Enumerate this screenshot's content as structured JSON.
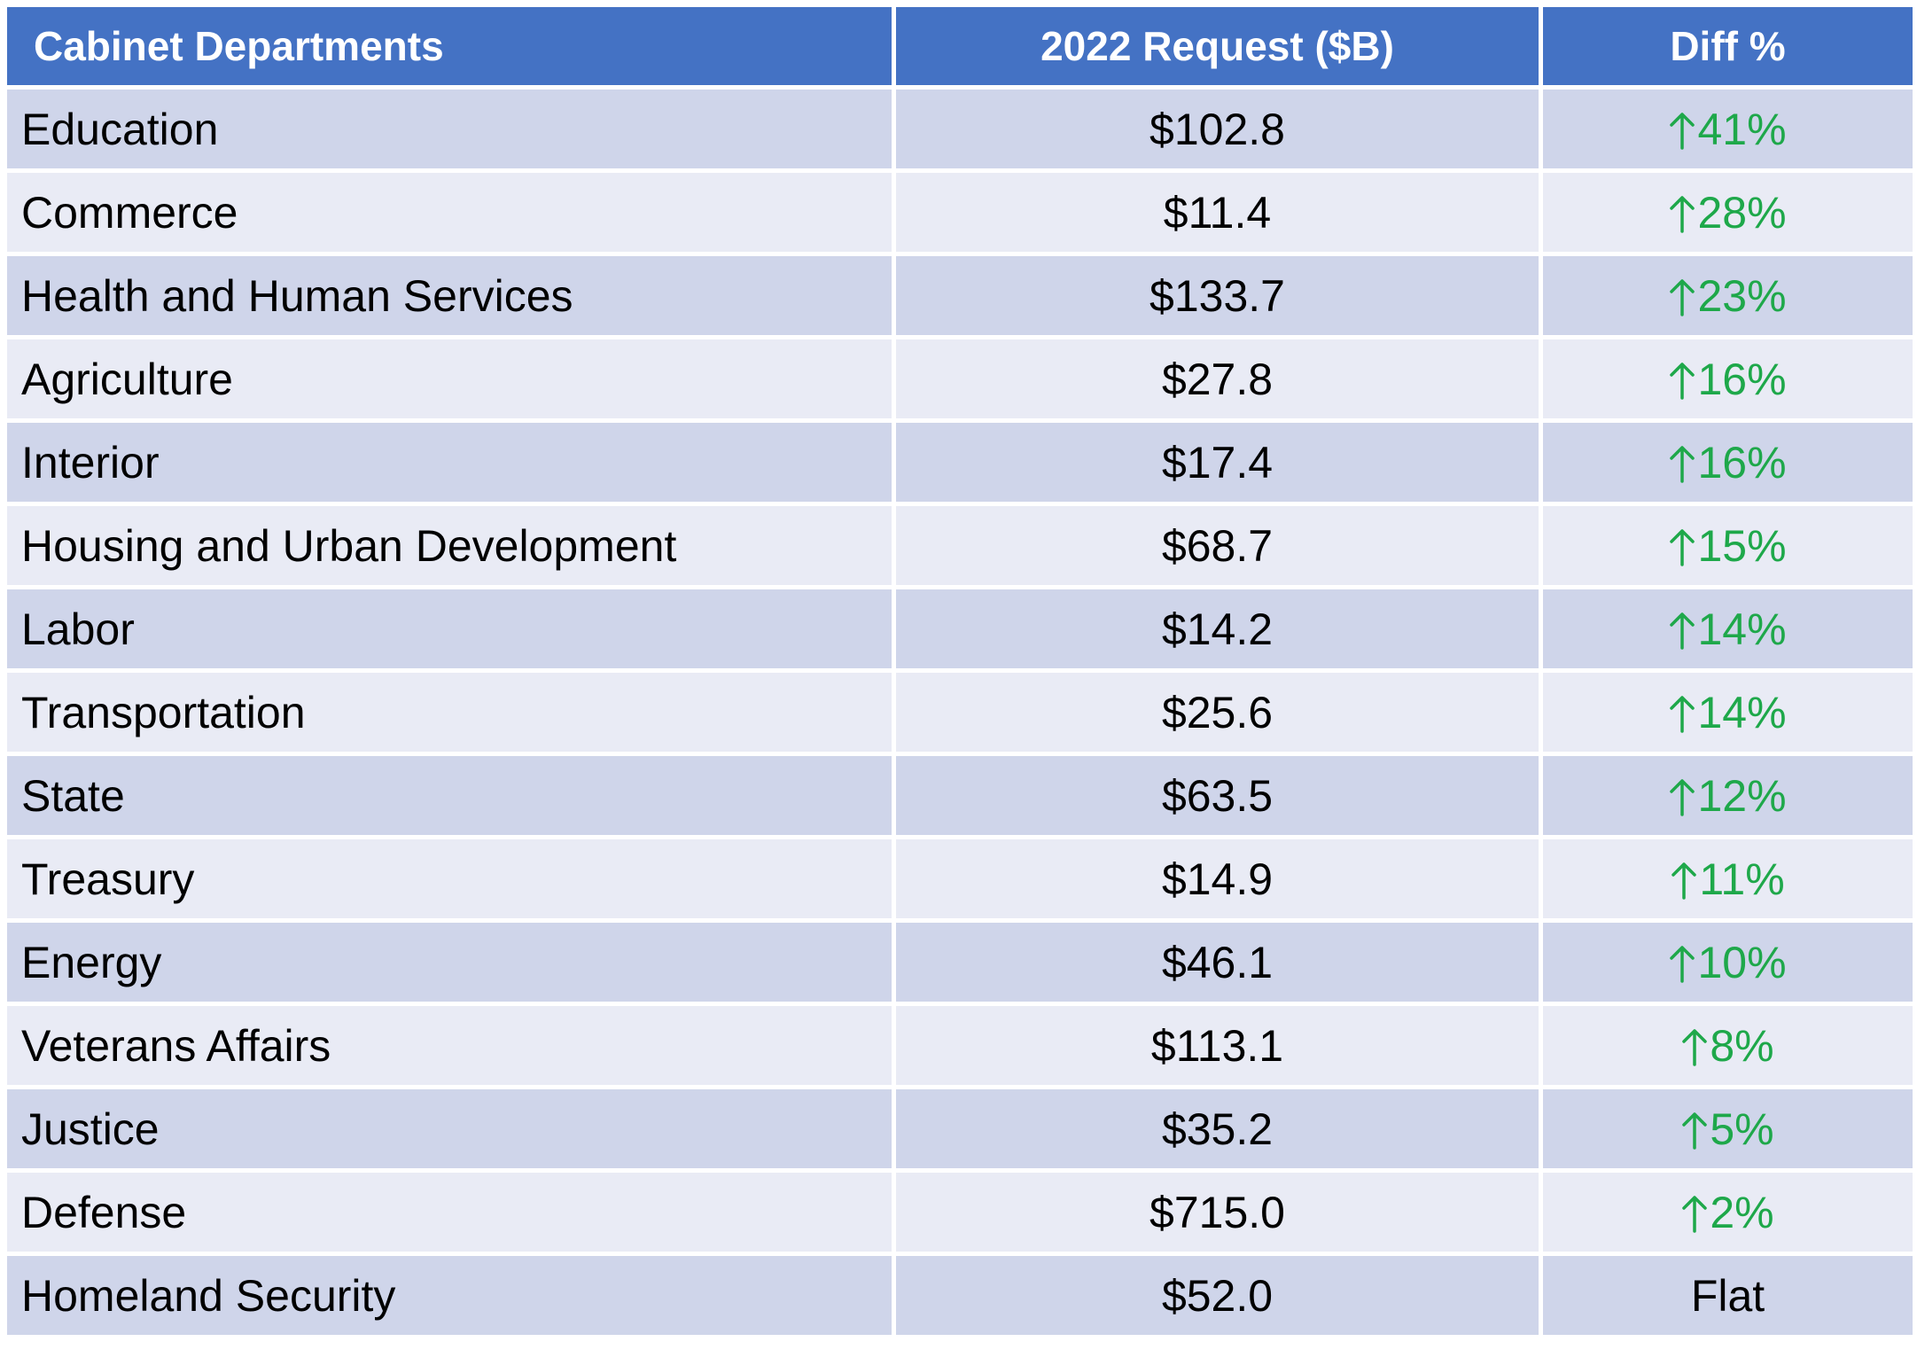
{
  "chart_data": {
    "type": "table",
    "columns": [
      "Cabinet Departments",
      "2022 Request ($B)",
      "Diff %"
    ],
    "rows": [
      {
        "department": "Education",
        "request": "$102.8",
        "diff": "41%",
        "trend": "up"
      },
      {
        "department": "Commerce",
        "request": "$11.4",
        "diff": "28%",
        "trend": "up"
      },
      {
        "department": "Health and Human Services",
        "request": "$133.7",
        "diff": "23%",
        "trend": "up"
      },
      {
        "department": "Agriculture",
        "request": "$27.8",
        "diff": "16%",
        "trend": "up"
      },
      {
        "department": "Interior",
        "request": "$17.4",
        "diff": "16%",
        "trend": "up"
      },
      {
        "department": "Housing and Urban Development",
        "request": "$68.7",
        "diff": "15%",
        "trend": "up"
      },
      {
        "department": "Labor",
        "request": "$14.2",
        "diff": "14%",
        "trend": "up"
      },
      {
        "department": "Transportation",
        "request": "$25.6",
        "diff": "14%",
        "trend": "up"
      },
      {
        "department": "State",
        "request": "$63.5",
        "diff": "12%",
        "trend": "up"
      },
      {
        "department": "Treasury",
        "request": "$14.9",
        "diff": "11%",
        "trend": "up"
      },
      {
        "department": "Energy",
        "request": "$46.1",
        "diff": "10%",
        "trend": "up"
      },
      {
        "department": "Veterans Affairs",
        "request": "$113.1",
        "diff": "8%",
        "trend": "up"
      },
      {
        "department": "Justice",
        "request": "$35.2",
        "diff": "5%",
        "trend": "up"
      },
      {
        "department": "Defense",
        "request": "$715.0",
        "diff": "2%",
        "trend": "up"
      },
      {
        "department": "Homeland Security",
        "request": "$52.0",
        "diff": "Flat",
        "trend": "flat"
      }
    ]
  },
  "colors": {
    "header_bg": "#4472c4",
    "header_text": "#ffffff",
    "row_odd_bg": "#cfd5ea",
    "row_even_bg": "#e9ebf5",
    "increase": "#1ea84a",
    "text": "#000000"
  },
  "icons": {
    "increase": "arrow-up-icon"
  }
}
